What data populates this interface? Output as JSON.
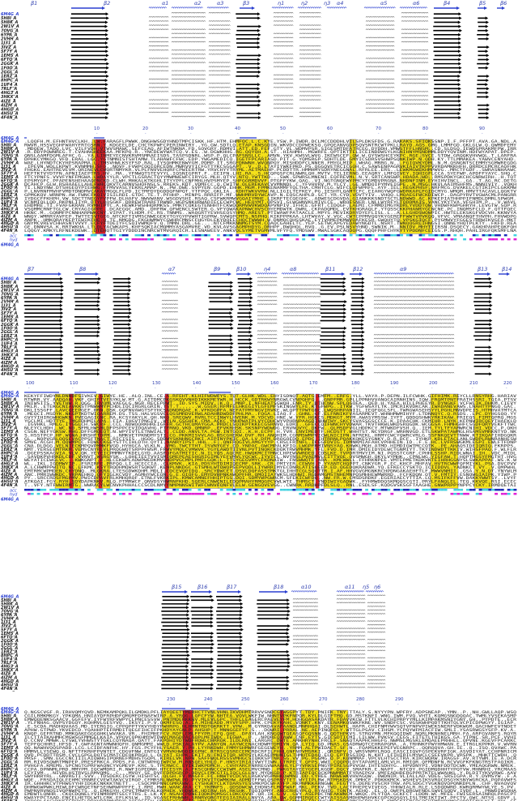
{
  "rows": [
    "6M4G_A",
    "5H8I_A",
    "5H8K_A",
    "2W1V_A",
    "7OVG_A",
    "6YPA_A",
    "2VHH_A",
    "1J31_A",
    "3IVZ_A",
    "5F7Y_A",
    "1EMS_A",
    "6FTQ_A",
    "2GGK_A",
    "1F0O_A",
    "2GGL_A",
    "1ERZ_A",
    "8HPC_A",
    "1UF4_A",
    "7RLF_A",
    "4HG3_A",
    "3HKX_A",
    "4IZE_A",
    "4IZM_A",
    "4HGD_A",
    "4H5U_A",
    "4F4N_A"
  ],
  "block1": {
    "ss_labels": [
      "β1",
      "β2",
      "α1",
      "α2",
      "α3",
      "β3",
      "η1",
      "η2",
      "η3",
      "α4",
      "α5",
      "α6",
      "β4",
      "β5",
      "β6"
    ],
    "ticks": [
      "10",
      "20",
      "30",
      "40",
      "50",
      "60",
      "70",
      "80",
      "90"
    ]
  },
  "block2": {
    "ss_labels": [
      "β7",
      "β8",
      "α7",
      "β9",
      "β10",
      "η4",
      "α8",
      "β11",
      "β12",
      "α9",
      "β13",
      "β14"
    ],
    "ticks": [
      "100",
      "110",
      "120",
      "130",
      "140",
      "150",
      "160",
      "170",
      "180",
      "190",
      "200",
      "210",
      "220"
    ]
  },
  "block3": {
    "ss_labels": [
      "β15",
      "β16",
      "β17",
      "β18",
      "α10",
      "α11",
      "η5",
      "η6"
    ],
    "ticks": [
      "230",
      "240",
      "250",
      "260",
      "270",
      "280",
      "290"
    ]
  },
  "track_labels": {
    "acc": "acc",
    "hyd": "hyd"
  },
  "colors": {
    "conserved_red": "#d81e1e",
    "similar_yellow": "#f5e11a",
    "ss_blue": "#2a3fd0",
    "acc_blue": "#1a2bb8",
    "acc_cyan": "#3fd2e0",
    "hyd_magenta": "#e020d8"
  }
}
